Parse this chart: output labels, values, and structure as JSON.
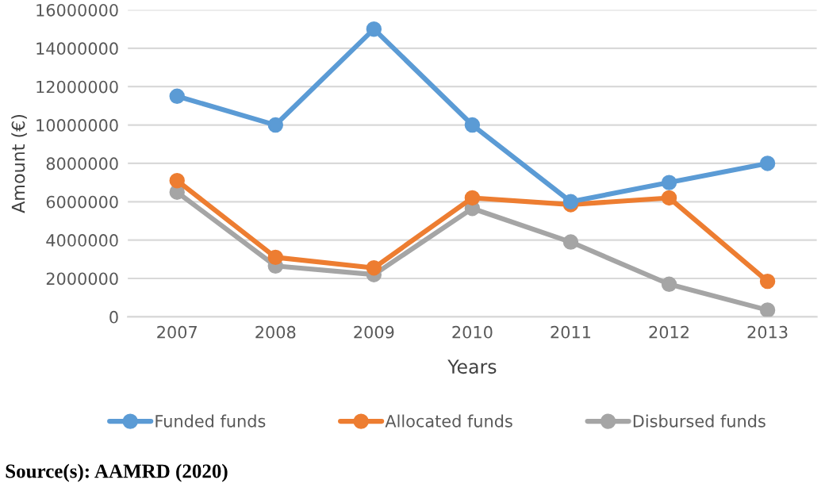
{
  "chart_data": {
    "type": "line",
    "xlabel": "Years",
    "ylabel": "Amount (€)",
    "categories": [
      "2007",
      "2008",
      "2009",
      "2010",
      "2011",
      "2012",
      "2013"
    ],
    "series": [
      {
        "name": "Funded funds",
        "color": "#5b9bd5",
        "values": [
          11500000,
          10000000,
          15000000,
          10000000,
          6000000,
          7000000,
          8000000
        ]
      },
      {
        "name": "Allocated funds",
        "color": "#ed7d31",
        "values": [
          7100000,
          3100000,
          2550000,
          6200000,
          5850000,
          6200000,
          1850000
        ]
      },
      {
        "name": "Disbursed funds",
        "color": "#a5a5a5",
        "values": [
          6500000,
          2650000,
          2200000,
          5650000,
          3900000,
          1700000,
          350000
        ]
      }
    ],
    "ylim": [
      0,
      16000000
    ],
    "yticks": [
      0,
      2000000,
      4000000,
      6000000,
      8000000,
      10000000,
      12000000,
      14000000,
      16000000
    ],
    "grid": "y",
    "legend": "bottom",
    "marker": "circle",
    "line_style": "solid",
    "annotations": [
      "Source(s): AAMRD (2020)"
    ]
  }
}
